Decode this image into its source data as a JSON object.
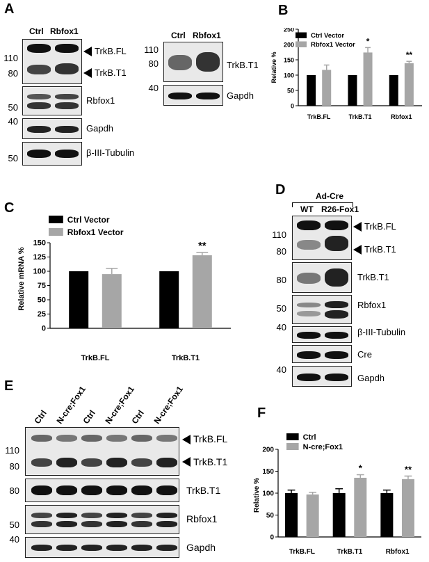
{
  "panels": {
    "A": {
      "letter": "A",
      "lanes": [
        "Ctrl",
        "Rbfox1"
      ],
      "mw": {
        "m110": "110",
        "m80": "80",
        "m50": "50",
        "m40": "40",
        "m50b": "50"
      },
      "labels": {
        "fl": "TrkB.FL",
        "t1": "TrkB.T1",
        "rbfox1": "Rbfox1",
        "gapdh": "Gapdh",
        "tubulin": "β-III-Tubulin"
      },
      "right": {
        "lanes": [
          "Ctrl",
          "Rbfox1"
        ],
        "mw": {
          "m110": "110",
          "m80": "80",
          "m40": "40"
        },
        "labels": {
          "t1": "TrkB.T1",
          "gapdh": "Gapdh"
        }
      }
    },
    "B": {
      "letter": "B"
    },
    "C": {
      "letter": "C"
    },
    "D": {
      "letter": "D",
      "header": "Ad-Cre",
      "lanes": [
        "WT",
        "R26-Fox1"
      ],
      "mw": {
        "m110": "110",
        "m80": "80",
        "m80b": "80",
        "m50": "50",
        "m40": "40",
        "m40b": "40"
      },
      "labels": {
        "fl": "TrkB.FL",
        "t1": "TrkB.T1",
        "t1b": "TrkB.T1",
        "rbfox1": "Rbfox1",
        "tubulin": "β-III-Tubulin",
        "cre": "Cre",
        "gapdh": "Gapdh"
      }
    },
    "E": {
      "letter": "E",
      "lanes": [
        "Ctrl",
        "N-cre;Fox1",
        "Ctrl",
        "N-cre;Fox1",
        "Ctrl",
        "N-cre;Fox1"
      ],
      "mw": {
        "m110": "110",
        "m80": "80",
        "m80b": "80",
        "m50": "50",
        "m40": "40"
      },
      "labels": {
        "fl": "TrkB.FL",
        "t1": "TrkB.T1",
        "t1b": "TrkB.T1",
        "rbfox1": "Rbfox1",
        "gapdh": "Gapdh"
      }
    },
    "F": {
      "letter": "F"
    }
  },
  "chart_data": [
    {
      "panel": "B",
      "type": "bar",
      "categories": [
        "TrkB.FL",
        "TrkB.T1",
        "Rbfox1"
      ],
      "series": [
        {
          "name": "Ctrl Vector",
          "color": "#000000",
          "values": [
            100,
            100,
            100
          ],
          "errors": [
            0,
            0,
            0
          ]
        },
        {
          "name": "Rbfox1 Vector",
          "color": "#a6a6a6",
          "values": [
            117,
            174,
            139
          ],
          "errors": [
            16,
            16,
            6
          ]
        }
      ],
      "significance": [
        "",
        "*",
        "**"
      ],
      "ylabel": "Relative %",
      "ylim": [
        0,
        250
      ],
      "yticks": [
        0,
        50,
        100,
        150,
        200,
        250
      ],
      "legend": "top-left"
    },
    {
      "panel": "C",
      "type": "bar",
      "categories": [
        "TrkB.FL",
        "TrkB.T1"
      ],
      "series": [
        {
          "name": "Ctrl Vector",
          "color": "#000000",
          "values": [
            100,
            100
          ],
          "errors": [
            0,
            0
          ]
        },
        {
          "name": "Rbfox1 Vector",
          "color": "#a6a6a6",
          "values": [
            95,
            128
          ],
          "errors": [
            10,
            5
          ]
        }
      ],
      "significance": [
        "",
        "**"
      ],
      "ylabel": "Relative mRNA %",
      "ylim": [
        0,
        150
      ],
      "yticks": [
        0,
        25,
        50,
        75,
        100,
        125,
        150
      ],
      "legend": "top-left"
    },
    {
      "panel": "F",
      "type": "bar",
      "categories": [
        "TrkB.FL",
        "TrkB.T1",
        "Rbfox1"
      ],
      "series": [
        {
          "name": "Ctrl",
          "color": "#000000",
          "values": [
            100,
            100,
            100
          ],
          "errors": [
            7,
            10,
            7
          ]
        },
        {
          "name": "N-cre;Fox1",
          "color": "#a6a6a6",
          "values": [
            97,
            135,
            132
          ],
          "errors": [
            5,
            7,
            7
          ]
        }
      ],
      "significance": [
        "",
        "*",
        "**"
      ],
      "ylabel": "Relative %",
      "ylim": [
        0,
        200
      ],
      "yticks": [
        0,
        50,
        100,
        150,
        200
      ],
      "legend": "top-left"
    }
  ]
}
